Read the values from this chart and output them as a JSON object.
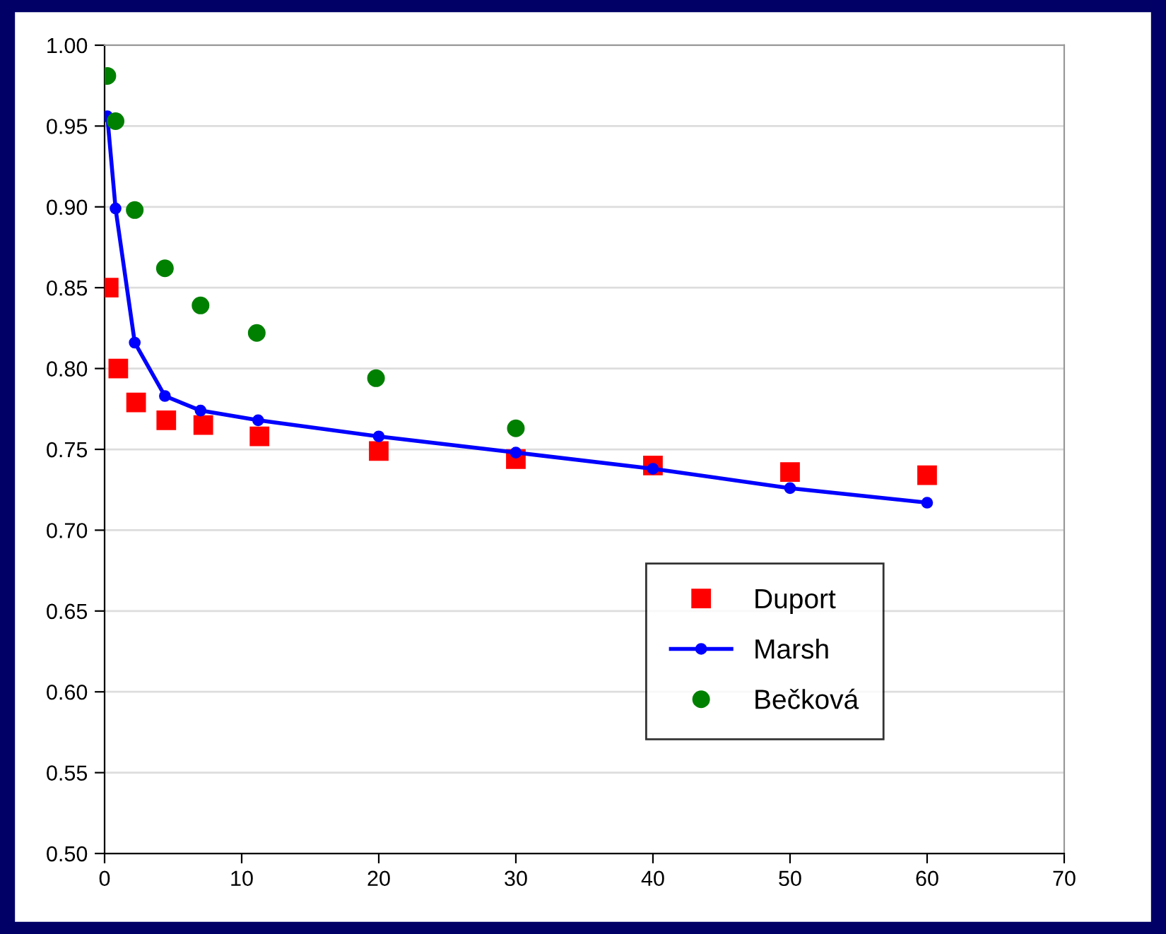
{
  "chart_data": {
    "type": "scatter",
    "xlim": [
      0,
      70
    ],
    "xticks": [
      0,
      10,
      20,
      30,
      40,
      50,
      60,
      70
    ],
    "ylim": [
      0.5,
      1.0
    ],
    "yticks": [
      {
        "value": 0.5,
        "label": "0.50"
      },
      {
        "value": 0.55,
        "label": "0.55"
      },
      {
        "value": 0.6,
        "label": "0.60"
      },
      {
        "value": 0.65,
        "label": "0.65"
      },
      {
        "value": 0.7,
        "label": "0.70"
      },
      {
        "value": 0.75,
        "label": "0.75"
      },
      {
        "value": 0.8,
        "label": "0.80"
      },
      {
        "value": 0.85,
        "label": "0.85"
      },
      {
        "value": 0.9,
        "label": "0.90"
      },
      {
        "value": 0.95,
        "label": "0.95"
      },
      {
        "value": 1.0,
        "label": "1.00"
      }
    ],
    "grid": "y",
    "legend": "right",
    "series": [
      {
        "name": "Duport",
        "marker": "square",
        "color": "#ff0000",
        "x": [
          0.3,
          1.0,
          2.3,
          4.5,
          7.2,
          11.3,
          20,
          30,
          40,
          50,
          60
        ],
        "values": [
          0.85,
          0.8,
          0.779,
          0.768,
          0.765,
          0.758,
          0.749,
          0.744,
          0.74,
          0.736,
          0.734
        ]
      },
      {
        "name": "Marsh",
        "type": "line",
        "marker": "circle",
        "line_style": "solid",
        "color": "#0000ff",
        "x": [
          0.2,
          0.8,
          2.2,
          4.4,
          7.0,
          11.2,
          20,
          30,
          40,
          50,
          60
        ],
        "values": [
          0.956,
          0.899,
          0.816,
          0.783,
          0.774,
          0.768,
          0.758,
          0.748,
          0.738,
          0.726,
          0.717
        ]
      },
      {
        "name": "Bečková",
        "marker": "circle",
        "color": "#008000",
        "x": [
          0.2,
          0.8,
          2.2,
          4.4,
          7.0,
          11.1,
          19.8,
          30
        ],
        "values": [
          0.981,
          0.953,
          0.898,
          0.862,
          0.839,
          0.822,
          0.794,
          0.763
        ]
      }
    ]
  }
}
